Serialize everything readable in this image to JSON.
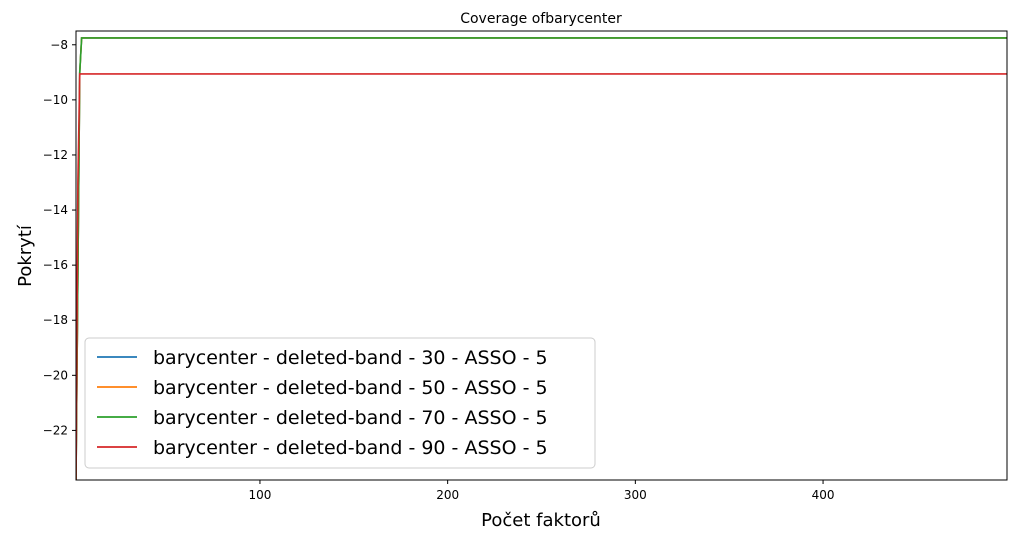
{
  "chart_data": {
    "type": "line",
    "title": "Coverage ofbarycenter",
    "xlabel": "Počet faktorů",
    "ylabel": "Pokrytí",
    "xlim": [
      2,
      498
    ],
    "ylim": [
      -23.8,
      -7.5
    ],
    "xticks": [
      100,
      200,
      300,
      400
    ],
    "yticks": [
      -8,
      -10,
      -12,
      -14,
      -16,
      -18,
      -20,
      -22
    ],
    "xtick_labels": [
      "100",
      "200",
      "300",
      "400"
    ],
    "ytick_labels": [
      "−8",
      "−10",
      "−12",
      "−14",
      "−16",
      "−18",
      "−20",
      "−22"
    ],
    "grid": false,
    "legend_position": "lower-left",
    "series": [
      {
        "name": "barycenter - deleted-band - 30 - ASSO - 5",
        "color": "#1f77b4",
        "points": [
          [
            2,
            -23.8
          ],
          [
            4,
            -9.0
          ],
          [
            5,
            -7.75
          ],
          [
            498,
            -7.75
          ]
        ]
      },
      {
        "name": "barycenter - deleted-band - 50 - ASSO - 5",
        "color": "#ff7f0e",
        "points": [
          [
            2,
            -23.8
          ],
          [
            4,
            -9.0
          ],
          [
            5,
            -7.75
          ],
          [
            498,
            -7.75
          ]
        ]
      },
      {
        "name": "barycenter - deleted-band - 70 - ASSO - 5",
        "color": "#2ca02c",
        "points": [
          [
            2,
            -23.8
          ],
          [
            4,
            -9.0
          ],
          [
            5,
            -7.75
          ],
          [
            498,
            -7.75
          ]
        ]
      },
      {
        "name": "barycenter - deleted-band - 90 - ASSO - 5",
        "color": "#d62728",
        "points": [
          [
            2,
            -23.8
          ],
          [
            3,
            -13.0
          ],
          [
            4,
            -9.06
          ],
          [
            5,
            -9.06
          ],
          [
            498,
            -9.06
          ]
        ]
      }
    ]
  }
}
